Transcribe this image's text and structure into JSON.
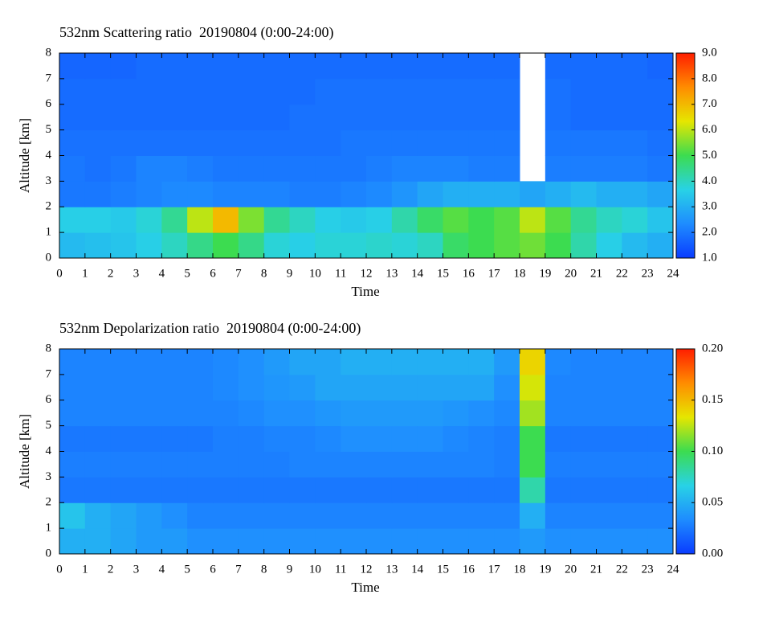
{
  "chart_data": [
    {
      "type": "heatmap",
      "title": "532nm Scattering ratio  20190804 (0:00-24:00)",
      "xlabel": "Time",
      "ylabel": "Altitude [km]",
      "xbins": [
        0,
        1,
        2,
        3,
        4,
        5,
        6,
        7,
        8,
        9,
        10,
        11,
        12,
        13,
        14,
        15,
        16,
        17,
        18,
        19,
        20,
        21,
        22,
        23,
        24
      ],
      "ybins": [
        0,
        1,
        2,
        3,
        4,
        5,
        6,
        7,
        8
      ],
      "values": [
        [
          3.2,
          3.3,
          3.4,
          3.6,
          4.0,
          4.5,
          5.0,
          4.5,
          3.8,
          3.6,
          3.8,
          3.8,
          3.9,
          3.8,
          4.0,
          4.8,
          5.0,
          5.2,
          5.4,
          5.0,
          4.2,
          3.6,
          3.2,
          3.0
        ],
        [
          3.6,
          3.6,
          3.5,
          3.8,
          4.4,
          6.0,
          7.0,
          5.5,
          4.4,
          4.0,
          3.6,
          3.5,
          3.6,
          4.2,
          4.8,
          5.2,
          5.0,
          5.2,
          6.0,
          5.2,
          4.4,
          4.0,
          3.8,
          3.4
        ],
        [
          2.0,
          2.0,
          2.1,
          2.2,
          2.3,
          2.3,
          2.2,
          2.2,
          2.2,
          2.1,
          2.1,
          2.2,
          2.3,
          2.5,
          2.8,
          3.0,
          3.0,
          3.0,
          2.8,
          3.0,
          3.2,
          3.0,
          3.0,
          2.8
        ],
        [
          2.0,
          1.9,
          2.0,
          2.2,
          2.2,
          2.1,
          2.0,
          2.0,
          2.0,
          2.0,
          2.0,
          2.0,
          2.1,
          2.2,
          2.2,
          2.2,
          2.1,
          2.1,
          null,
          2.1,
          2.1,
          2.1,
          2.1,
          2.0
        ],
        [
          1.9,
          1.9,
          1.9,
          1.9,
          1.9,
          1.9,
          1.9,
          1.9,
          1.9,
          1.9,
          1.9,
          2.0,
          2.0,
          2.0,
          2.0,
          2.0,
          2.0,
          2.0,
          null,
          2.0,
          2.0,
          2.0,
          2.0,
          1.9
        ],
        [
          1.8,
          1.8,
          1.8,
          1.8,
          1.8,
          1.8,
          1.8,
          1.8,
          1.8,
          1.9,
          1.9,
          1.9,
          1.9,
          1.9,
          1.9,
          1.9,
          1.9,
          1.9,
          null,
          1.9,
          1.8,
          1.8,
          1.8,
          1.8
        ],
        [
          1.8,
          1.8,
          1.8,
          1.8,
          1.8,
          1.8,
          1.8,
          1.8,
          1.8,
          1.8,
          1.9,
          1.9,
          1.9,
          1.9,
          1.9,
          1.9,
          1.9,
          1.9,
          null,
          1.9,
          1.8,
          1.8,
          1.8,
          1.8
        ],
        [
          1.7,
          1.7,
          1.7,
          1.8,
          1.8,
          1.8,
          1.8,
          1.8,
          1.8,
          1.8,
          1.8,
          1.8,
          1.8,
          1.8,
          1.8,
          1.8,
          1.8,
          1.8,
          null,
          1.8,
          1.8,
          1.8,
          1.8,
          1.7
        ]
      ],
      "xlim": [
        0,
        24
      ],
      "ylim": [
        0,
        8
      ],
      "xticks": [
        0,
        1,
        2,
        3,
        4,
        5,
        6,
        7,
        8,
        9,
        10,
        11,
        12,
        13,
        14,
        15,
        16,
        17,
        18,
        19,
        20,
        21,
        22,
        23,
        24
      ],
      "yticks": [
        0,
        1,
        2,
        3,
        4,
        5,
        6,
        7,
        8
      ],
      "zlim": [
        1,
        9
      ],
      "zticks": [
        {
          "value": 1,
          "label": "1.0"
        },
        {
          "value": 2,
          "label": "2.0"
        },
        {
          "value": 3,
          "label": "3.0"
        },
        {
          "value": 4,
          "label": "4.0"
        },
        {
          "value": 5,
          "label": "5.0"
        },
        {
          "value": 6,
          "label": "6.0"
        },
        {
          "value": 7,
          "label": "7.0"
        },
        {
          "value": 8,
          "label": "8.0"
        },
        {
          "value": 9,
          "label": "9.0"
        }
      ],
      "colormap": [
        "#0a3cff",
        "#1e8cff",
        "#28d2e6",
        "#3cdc50",
        "#e6e600",
        "#ff8c00",
        "#ff1e00"
      ]
    },
    {
      "type": "heatmap",
      "title": "532nm Depolarization ratio  20190804 (0:00-24:00)",
      "xlabel": "Time",
      "ylabel": "Altitude [km]",
      "xbins": [
        0,
        1,
        2,
        3,
        4,
        5,
        6,
        7,
        8,
        9,
        10,
        11,
        12,
        13,
        14,
        15,
        16,
        17,
        18,
        19,
        20,
        21,
        22,
        23,
        24
      ],
      "ybins": [
        0,
        1,
        2,
        3,
        4,
        5,
        6,
        7,
        8
      ],
      "values": [
        [
          0.05,
          0.05,
          0.045,
          0.04,
          0.04,
          0.035,
          0.035,
          0.035,
          0.035,
          0.035,
          0.035,
          0.035,
          0.035,
          0.035,
          0.035,
          0.035,
          0.035,
          0.035,
          0.04,
          0.035,
          0.035,
          0.035,
          0.035,
          0.035
        ],
        [
          0.06,
          0.05,
          0.045,
          0.04,
          0.035,
          0.03,
          0.03,
          0.03,
          0.03,
          0.03,
          0.03,
          0.03,
          0.03,
          0.03,
          0.03,
          0.03,
          0.03,
          0.03,
          0.05,
          0.03,
          0.03,
          0.03,
          0.03,
          0.03
        ],
        [
          0.025,
          0.025,
          0.025,
          0.025,
          0.025,
          0.025,
          0.025,
          0.025,
          0.025,
          0.025,
          0.025,
          0.025,
          0.025,
          0.025,
          0.025,
          0.025,
          0.025,
          0.025,
          0.08,
          0.025,
          0.025,
          0.025,
          0.025,
          0.025
        ],
        [
          0.028,
          0.028,
          0.028,
          0.028,
          0.028,
          0.028,
          0.028,
          0.028,
          0.028,
          0.03,
          0.03,
          0.03,
          0.03,
          0.03,
          0.03,
          0.03,
          0.03,
          0.028,
          0.1,
          0.028,
          0.028,
          0.028,
          0.028,
          0.028
        ],
        [
          0.025,
          0.025,
          0.025,
          0.025,
          0.025,
          0.025,
          0.028,
          0.028,
          0.03,
          0.03,
          0.032,
          0.035,
          0.035,
          0.035,
          0.035,
          0.032,
          0.03,
          0.028,
          0.1,
          0.025,
          0.025,
          0.025,
          0.025,
          0.025
        ],
        [
          0.03,
          0.03,
          0.03,
          0.03,
          0.03,
          0.03,
          0.03,
          0.032,
          0.035,
          0.035,
          0.038,
          0.04,
          0.04,
          0.04,
          0.04,
          0.038,
          0.035,
          0.032,
          0.12,
          0.03,
          0.03,
          0.03,
          0.03,
          0.03
        ],
        [
          0.03,
          0.03,
          0.03,
          0.03,
          0.03,
          0.03,
          0.032,
          0.035,
          0.038,
          0.04,
          0.045,
          0.045,
          0.045,
          0.045,
          0.045,
          0.045,
          0.045,
          0.035,
          0.13,
          0.03,
          0.03,
          0.03,
          0.03,
          0.03
        ],
        [
          0.03,
          0.03,
          0.03,
          0.03,
          0.03,
          0.03,
          0.032,
          0.035,
          0.04,
          0.045,
          0.045,
          0.05,
          0.05,
          0.05,
          0.05,
          0.05,
          0.05,
          0.04,
          0.14,
          0.032,
          0.03,
          0.03,
          0.03,
          0.03
        ]
      ],
      "xlim": [
        0,
        24
      ],
      "ylim": [
        0,
        8
      ],
      "xticks": [
        0,
        1,
        2,
        3,
        4,
        5,
        6,
        7,
        8,
        9,
        10,
        11,
        12,
        13,
        14,
        15,
        16,
        17,
        18,
        19,
        20,
        21,
        22,
        23,
        24
      ],
      "yticks": [
        0,
        1,
        2,
        3,
        4,
        5,
        6,
        7,
        8
      ],
      "zlim": [
        0,
        0.2
      ],
      "zticks": [
        {
          "value": 0,
          "label": "0.00"
        },
        {
          "value": 0.05,
          "label": "0.05"
        },
        {
          "value": 0.1,
          "label": "0.10"
        },
        {
          "value": 0.15,
          "label": "0.15"
        },
        {
          "value": 0.2,
          "label": "0.20"
        }
      ],
      "colormap": [
        "#0a3cff",
        "#1e8cff",
        "#28d2e6",
        "#3cdc50",
        "#e6e600",
        "#ff8c00",
        "#ff1e00"
      ]
    }
  ]
}
